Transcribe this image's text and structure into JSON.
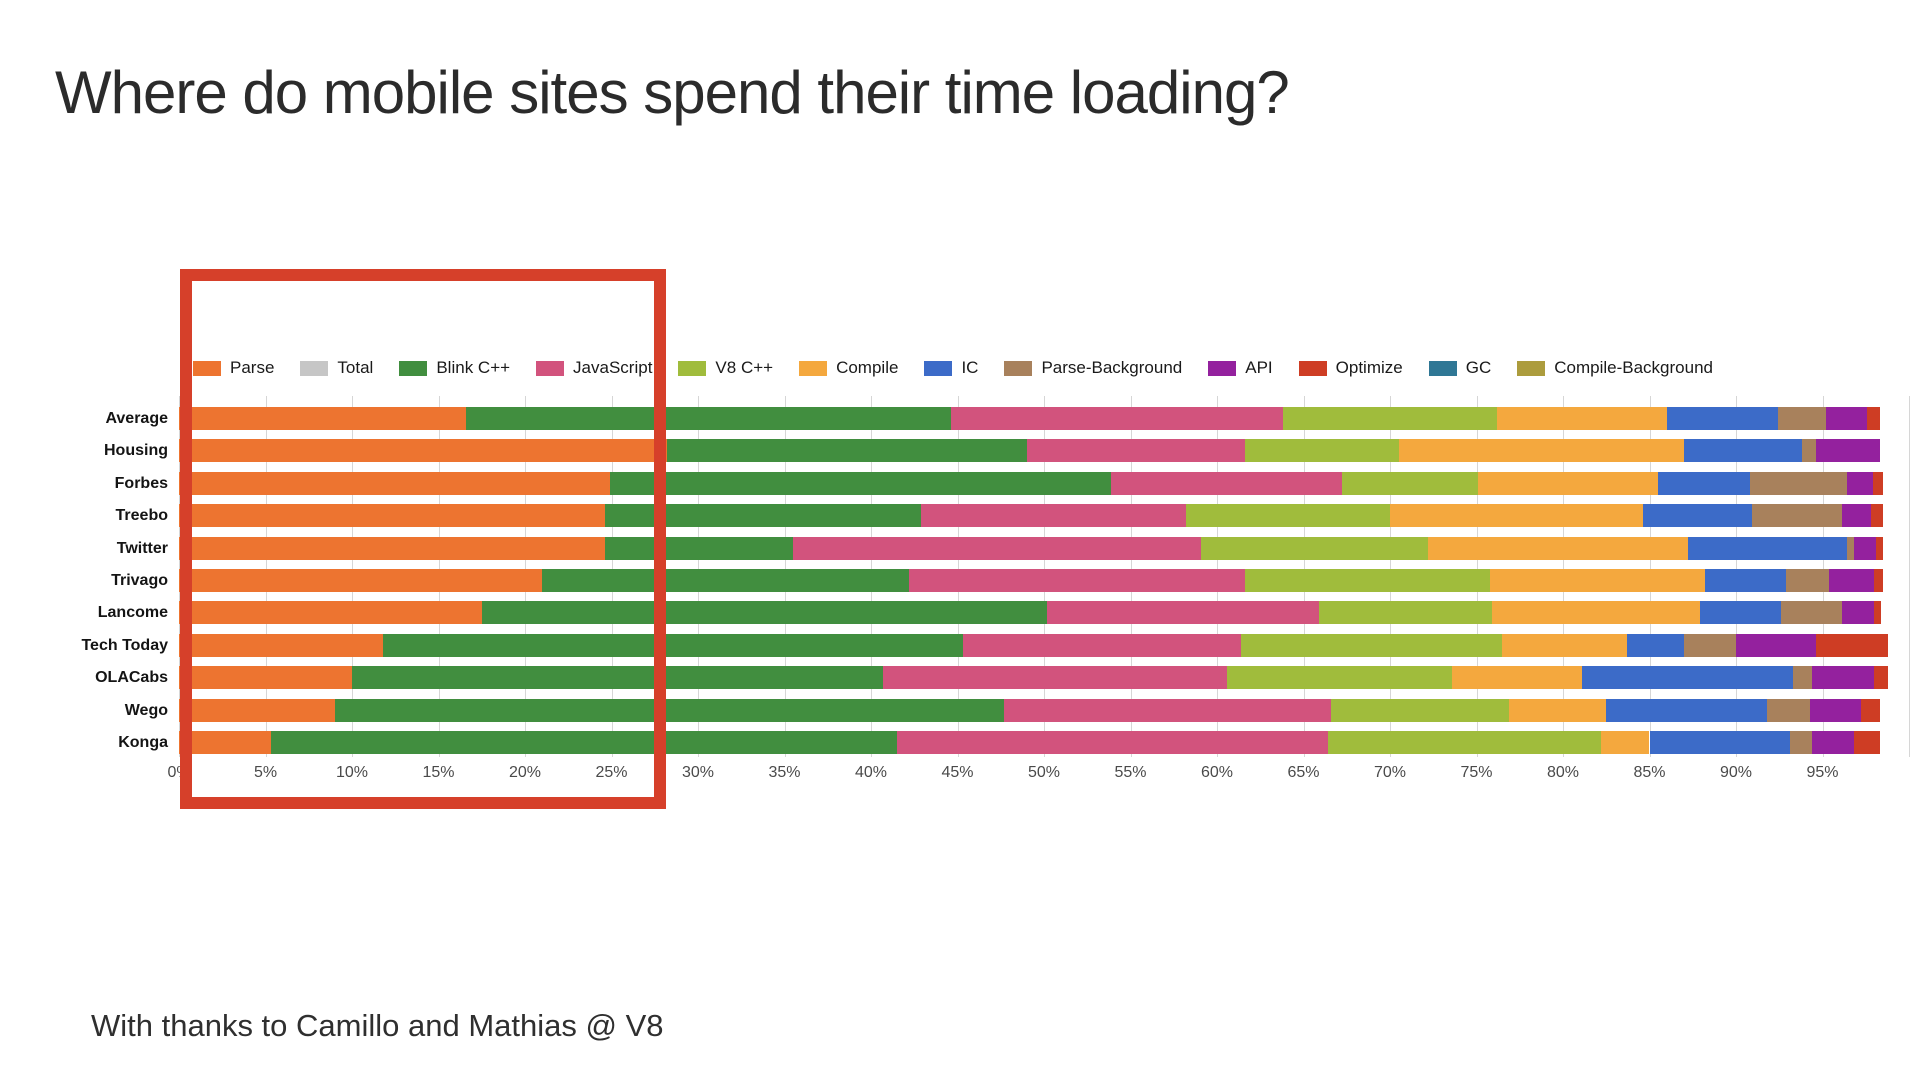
{
  "page": {
    "title": "Where do mobile sites spend their time loading?",
    "footer": "With thanks to Camillo and Mathias @ V8"
  },
  "annotation": {
    "highlight_box_color": "#d6402a",
    "highlight_range_percent": [
      0,
      27
    ]
  },
  "chart_data": {
    "type": "bar",
    "orientation": "horizontal",
    "stacked": true,
    "grid": true,
    "legend_position": "top",
    "axis": {
      "min": 0,
      "max": 100,
      "tick_step": 5
    },
    "ticks": [
      "0%",
      "5%",
      "10%",
      "15%",
      "20%",
      "25%",
      "30%",
      "35%",
      "40%",
      "45%",
      "50%",
      "55%",
      "60%",
      "65%",
      "70%",
      "75%",
      "80%",
      "85%",
      "90%",
      "95%"
    ],
    "categories": [
      "Average",
      "Housing",
      "Forbes",
      "Treebo",
      "Twitter",
      "Trivago",
      "Lancome",
      "Tech Today",
      "OLACabs",
      "Wego",
      "Konga"
    ],
    "series": [
      {
        "name": "Parse",
        "color": "#ED7430",
        "textured": false,
        "values": [
          16.6,
          28.2,
          24.9,
          24.6,
          24.6,
          21.0,
          17.5,
          11.8,
          10.0,
          9.0,
          5.3
        ]
      },
      {
        "name": "Total",
        "color": "#C6C6C6",
        "textured": false,
        "values": [
          0,
          0,
          0,
          0,
          0,
          0,
          0,
          0,
          0,
          0,
          0
        ]
      },
      {
        "name": "Blink C++",
        "color": "#418E3F",
        "textured": false,
        "values": [
          28.0,
          20.8,
          29.0,
          18.3,
          10.9,
          21.2,
          32.7,
          33.5,
          30.7,
          38.7,
          36.2
        ]
      },
      {
        "name": "JavaScript",
        "color": "#D2537D",
        "textured": false,
        "values": [
          19.2,
          12.6,
          13.3,
          15.3,
          23.6,
          19.4,
          15.7,
          16.1,
          19.9,
          18.9,
          24.9
        ]
      },
      {
        "name": "V8 C++",
        "color": "#A0BC3C",
        "textured": false,
        "values": [
          12.4,
          8.9,
          7.9,
          11.8,
          13.1,
          14.2,
          10.0,
          15.1,
          13.0,
          10.3,
          15.8
        ]
      },
      {
        "name": "Compile",
        "color": "#F4A83E",
        "textured": false,
        "values": [
          9.8,
          16.5,
          10.4,
          14.6,
          15.0,
          12.4,
          12.0,
          7.2,
          7.5,
          5.6,
          2.8
        ]
      },
      {
        "name": "IC",
        "color": "#3C6BC8",
        "textured": false,
        "values": [
          6.4,
          6.8,
          5.3,
          6.3,
          9.2,
          4.7,
          4.7,
          3.3,
          12.2,
          9.3,
          8.1
        ]
      },
      {
        "name": "Parse-Background",
        "color": "#A8815C",
        "textured": true,
        "values": [
          2.8,
          0.8,
          5.6,
          5.2,
          0.4,
          2.5,
          3.5,
          3.0,
          1.1,
          2.5,
          1.3
        ]
      },
      {
        "name": "API",
        "color": "#94219E",
        "textured": false,
        "values": [
          2.4,
          3.7,
          1.5,
          1.7,
          1.3,
          2.6,
          1.9,
          4.6,
          3.6,
          2.9,
          2.4
        ]
      },
      {
        "name": "Optimize",
        "color": "#CE3D24",
        "textured": false,
        "values": [
          0.7,
          0.0,
          0.6,
          0.7,
          0.4,
          0.5,
          0.4,
          4.2,
          0.8,
          1.1,
          1.5
        ]
      },
      {
        "name": "GC",
        "color": "#2F7795",
        "textured": true,
        "values": [
          0,
          0,
          0,
          0,
          0,
          0,
          0,
          0,
          0,
          0,
          0
        ]
      },
      {
        "name": "Compile-Background",
        "color": "#AC9C3D",
        "textured": true,
        "values": [
          0,
          0,
          0,
          0,
          0,
          0,
          0,
          0,
          0,
          0,
          0
        ]
      }
    ]
  }
}
